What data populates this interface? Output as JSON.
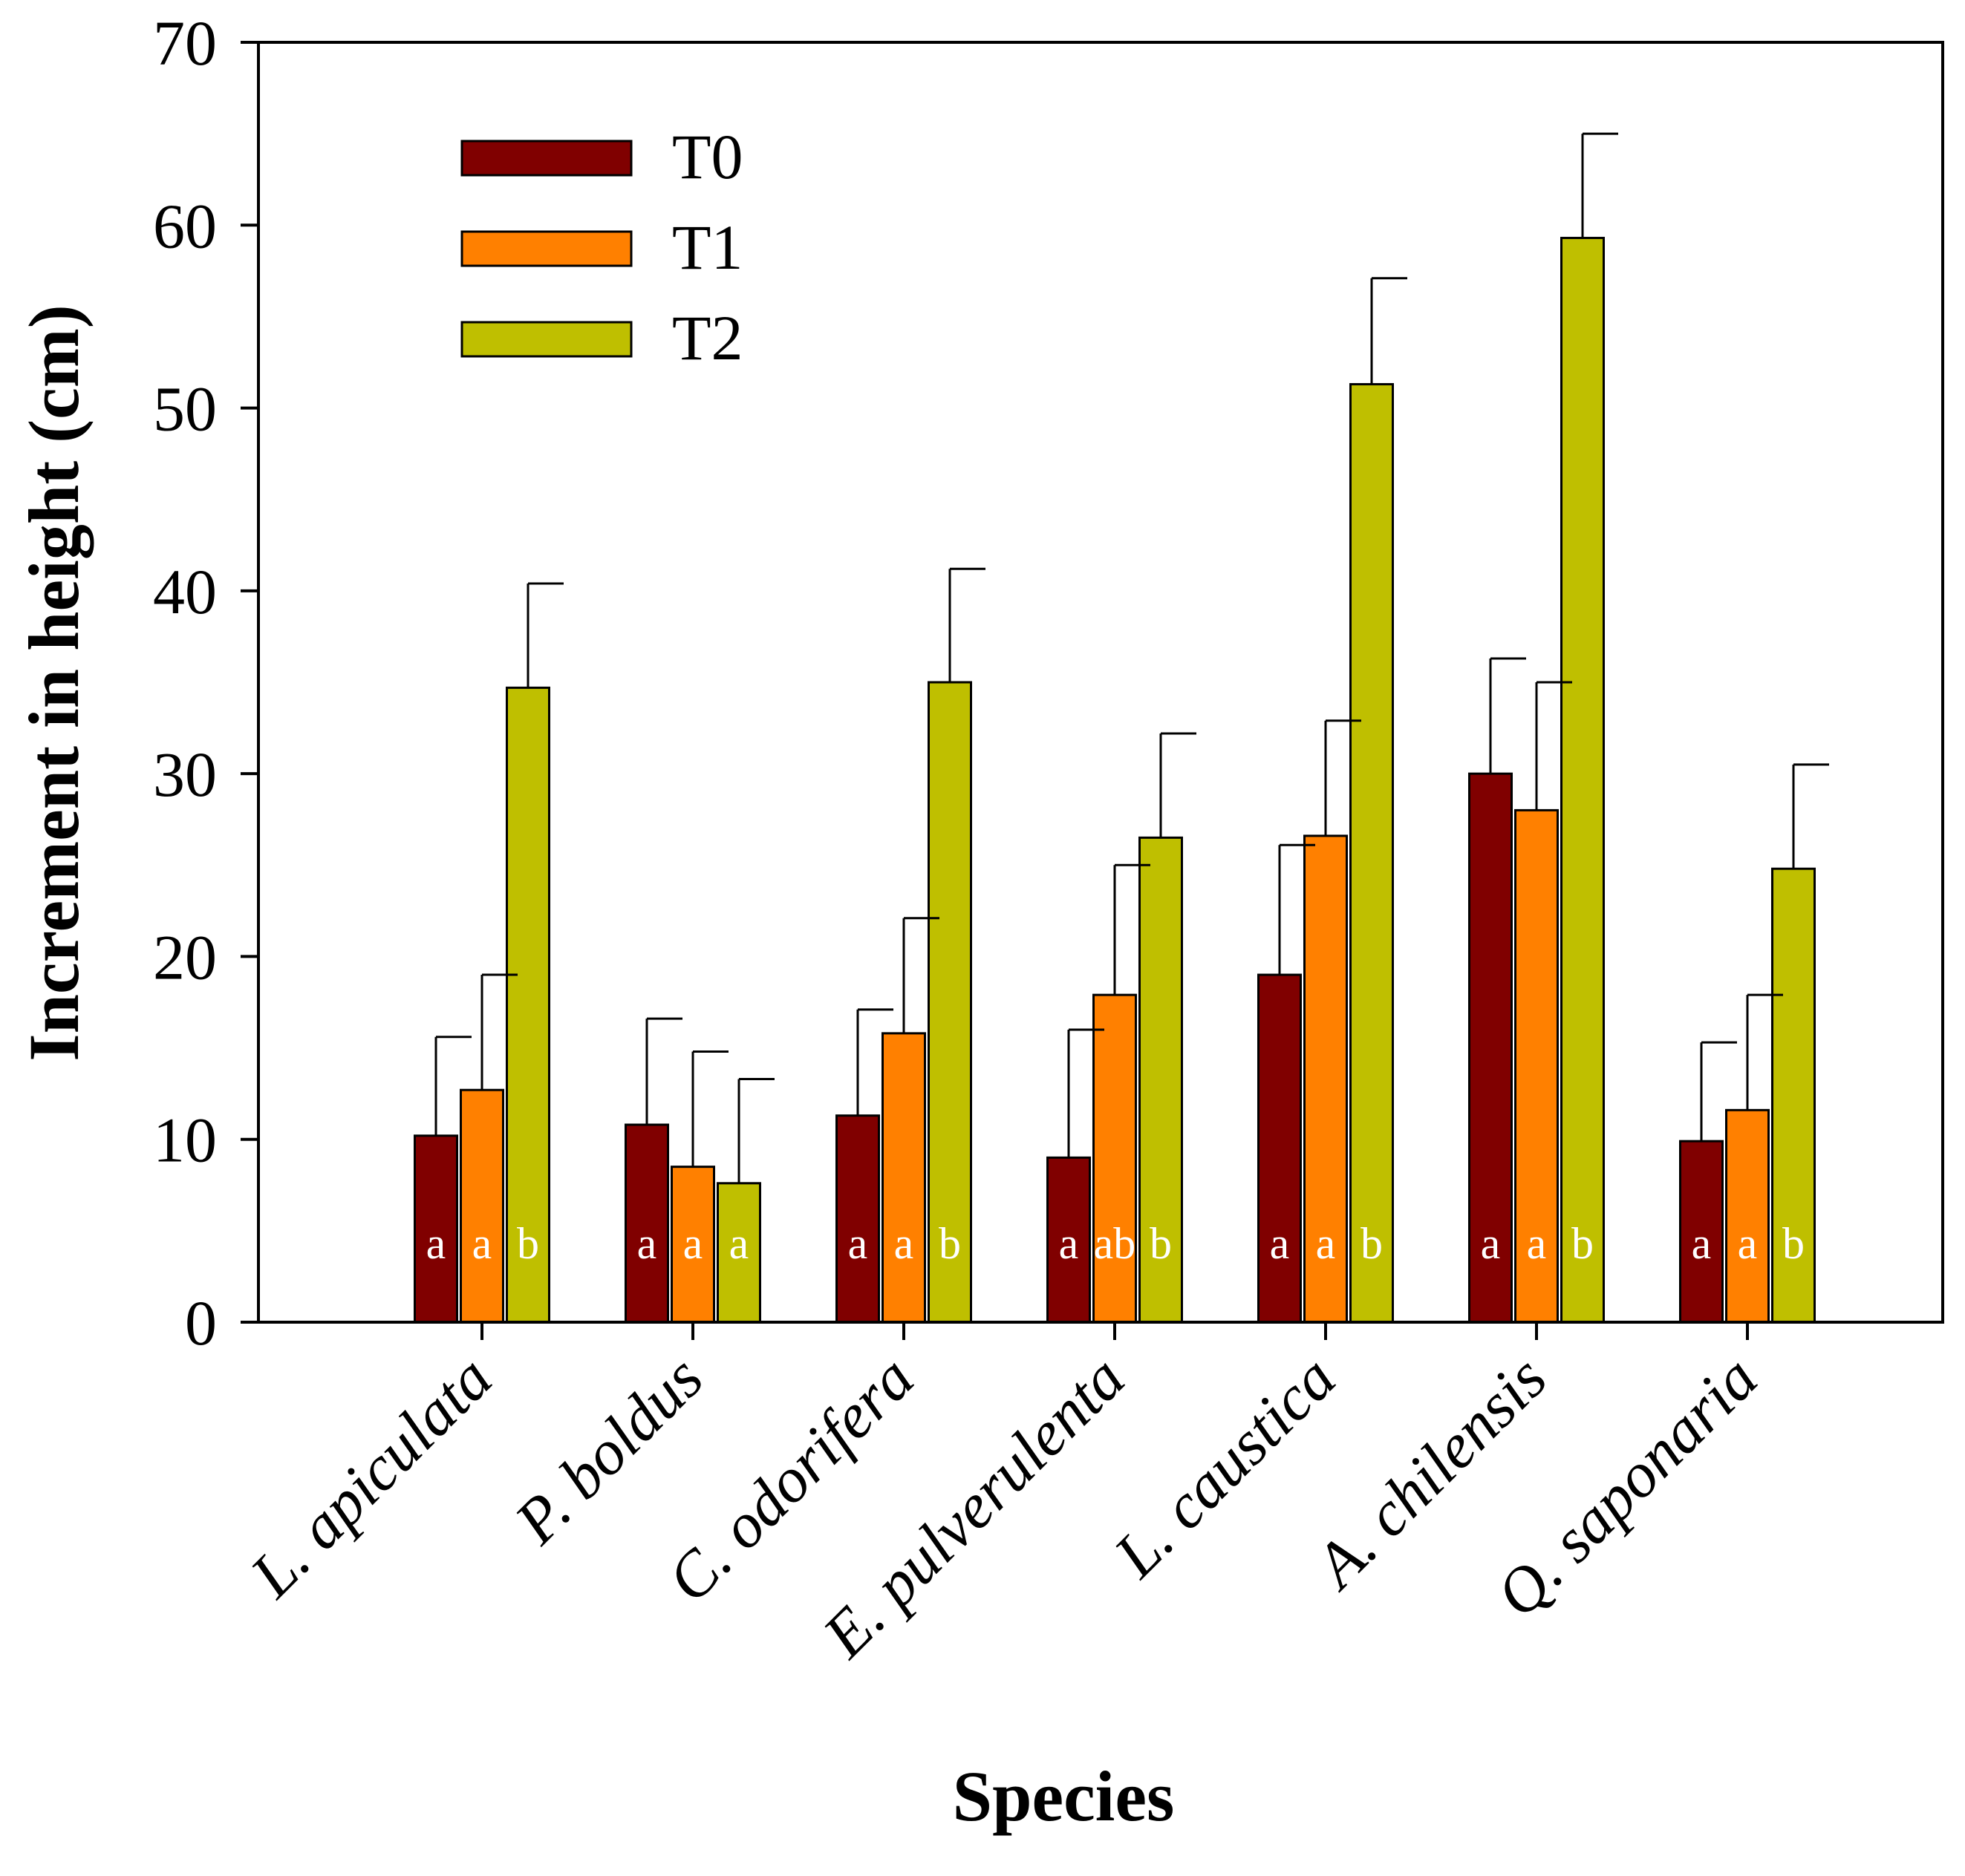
{
  "chart_data": {
    "type": "bar",
    "title": "",
    "xlabel": "Species",
    "ylabel": "Increment in height (cm)",
    "ylim": [
      0,
      70
    ],
    "yticks": [
      0,
      10,
      20,
      30,
      40,
      50,
      60,
      70
    ],
    "grid": false,
    "legend_position": "top-left",
    "categories": [
      "L. apiculata",
      "P. boldus",
      "C. odorifera",
      "E. pulverulenta",
      "L. caustica",
      "A. chilensis",
      "Q. saponaria"
    ],
    "series": [
      {
        "name": "T0",
        "color": "#800000",
        "values": [
          10.2,
          10.8,
          11.3,
          9.0,
          19.0,
          30.0,
          9.9
        ],
        "errors": [
          5.4,
          5.8,
          5.8,
          7.0,
          7.1,
          6.3,
          5.4
        ],
        "letters": [
          "a",
          "a",
          "a",
          "a",
          "a",
          "a",
          "a"
        ]
      },
      {
        "name": "T1",
        "color": "#ff8000",
        "values": [
          12.7,
          8.5,
          15.8,
          17.9,
          26.6,
          28.0,
          11.6
        ],
        "errors": [
          6.3,
          6.3,
          6.3,
          7.1,
          6.3,
          7.0,
          6.3
        ],
        "letters": [
          "a",
          "a",
          "a",
          "ab",
          "a",
          "a",
          "a"
        ]
      },
      {
        "name": "T2",
        "color": "#bfbf00",
        "values": [
          34.7,
          7.6,
          35.0,
          26.5,
          51.3,
          59.3,
          24.8
        ],
        "errors": [
          5.7,
          5.7,
          6.2,
          5.7,
          5.8,
          5.7,
          5.7
        ],
        "letters": [
          "b",
          "a",
          "b",
          "b",
          "b",
          "b",
          "b"
        ]
      }
    ]
  }
}
